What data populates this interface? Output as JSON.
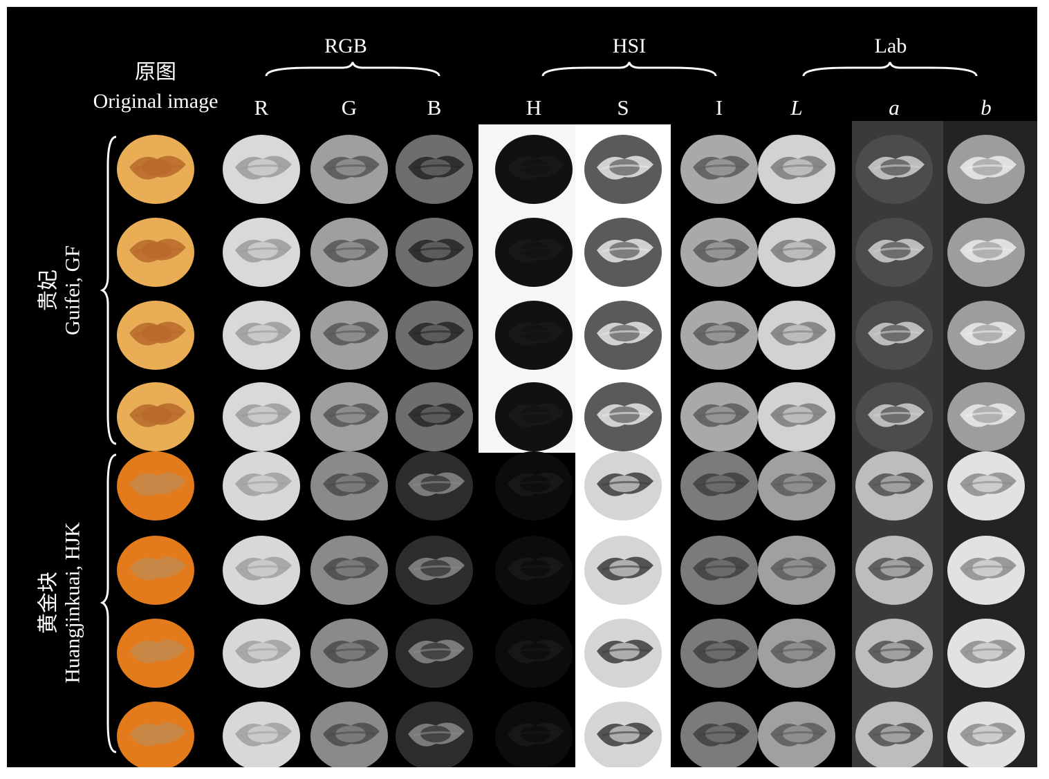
{
  "header": {
    "original": {
      "chinese": "原图",
      "english": "Original image"
    },
    "groups": [
      {
        "title": "RGB",
        "channels": [
          "R",
          "G",
          "B"
        ]
      },
      {
        "title": "HSI",
        "channels": [
          "H",
          "S",
          "I"
        ]
      },
      {
        "title": "Lab",
        "channels": [
          "L",
          "a",
          "b"
        ]
      }
    ]
  },
  "varieties": [
    {
      "chinese": "贵妃",
      "english": "Guifei, GF",
      "samples": 4,
      "original_color": "#e9ad55",
      "pit_color": "#b7682a"
    },
    {
      "chinese": "黄金块",
      "english": "Huangjinkuai, HJK",
      "samples": 4,
      "original_color": "#e37a1c",
      "pit_color": "#c5894a"
    }
  ],
  "colors": {
    "panel_background": "#000000",
    "text": "#ffffff",
    "hsi_h_background_gf": "#f6f6f6",
    "hsi_s_background": "#ffffff",
    "lab_a_background": "#3a3a3a",
    "lab_b_background": "#232323"
  },
  "channel_tones": {
    "GF": {
      "R": {
        "fill": "#d9d9d9",
        "detail": "#9a9a9a"
      },
      "G": {
        "fill": "#9f9f9f",
        "detail": "#555555"
      },
      "B": {
        "fill": "#6e6e6e",
        "detail": "#262626"
      },
      "H": {
        "fill": "#111111",
        "detail": "#1a1a1a"
      },
      "S": {
        "fill": "#5a5a5a",
        "detail": "#e6e6e6"
      },
      "I": {
        "fill": "#a9a9a9",
        "detail": "#5b5b5b"
      },
      "L": {
        "fill": "#d2d2d2",
        "detail": "#7d7d7d"
      },
      "a": {
        "fill": "#4c4c4c",
        "detail": "#d0d0d0"
      },
      "b": {
        "fill": "#9d9d9d",
        "detail": "#ececec"
      }
    },
    "HJK": {
      "R": {
        "fill": "#d8d8d8",
        "detail": "#a0a0a0"
      },
      "G": {
        "fill": "#8a8a8a",
        "detail": "#4a4a4a"
      },
      "B": {
        "fill": "#2d2d2d",
        "detail": "#8a8a8a"
      },
      "H": {
        "fill": "#0c0c0c",
        "detail": "#1a1a1a"
      },
      "S": {
        "fill": "#d5d5d5",
        "detail": "#3c3c3c"
      },
      "I": {
        "fill": "#7b7b7b",
        "detail": "#3f3f3f"
      },
      "L": {
        "fill": "#a0a0a0",
        "detail": "#5a5a5a"
      },
      "a": {
        "fill": "#bdbdbd",
        "detail": "#505050"
      },
      "b": {
        "fill": "#e2e2e2",
        "detail": "#8c8c8c"
      }
    }
  }
}
